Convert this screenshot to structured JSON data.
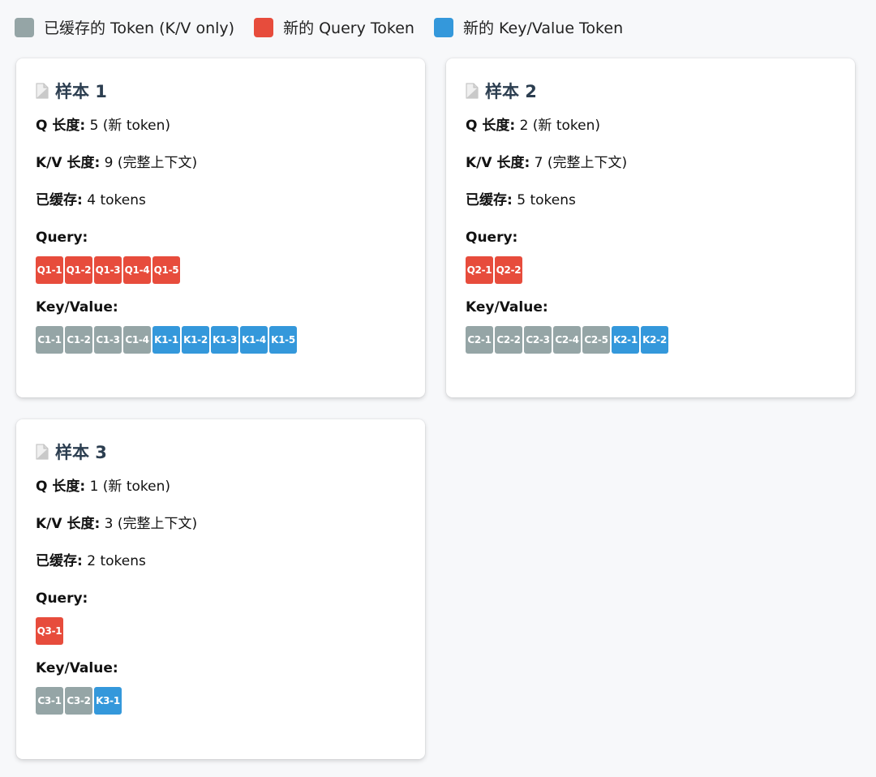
{
  "legend": [
    {
      "label": "已缓存的 Token (K/V only)",
      "color": "#95a5a6"
    },
    {
      "label": "新的 Query Token",
      "color": "#e74c3c"
    },
    {
      "label": "新的 Key/Value Token",
      "color": "#3498db"
    }
  ],
  "colors": {
    "cached": "#95a5a6",
    "query": "#e74c3c",
    "kv": "#3498db",
    "title": "#2c3e50"
  },
  "labels": {
    "q_len": "Q 长度:",
    "kv_len": "K/V 长度:",
    "cached": "已缓存:",
    "query": "Query:",
    "key_value": "Key/Value:"
  },
  "samples": [
    {
      "title": "样本 1",
      "q_len_value": "5 (新 token)",
      "kv_len_value": "9 (完整上下文)",
      "cached_value": "4 tokens",
      "query_tokens": [
        "Q1-1",
        "Q1-2",
        "Q1-3",
        "Q1-4",
        "Q1-5"
      ],
      "kv_tokens": [
        {
          "label": "C1-1",
          "type": "cached"
        },
        {
          "label": "C1-2",
          "type": "cached"
        },
        {
          "label": "C1-3",
          "type": "cached"
        },
        {
          "label": "C1-4",
          "type": "cached"
        },
        {
          "label": "K1-1",
          "type": "kv"
        },
        {
          "label": "K1-2",
          "type": "kv"
        },
        {
          "label": "K1-3",
          "type": "kv"
        },
        {
          "label": "K1-4",
          "type": "kv"
        },
        {
          "label": "K1-5",
          "type": "kv"
        }
      ]
    },
    {
      "title": "样本 2",
      "q_len_value": "2 (新 token)",
      "kv_len_value": "7 (完整上下文)",
      "cached_value": "5 tokens",
      "query_tokens": [
        "Q2-1",
        "Q2-2"
      ],
      "kv_tokens": [
        {
          "label": "C2-1",
          "type": "cached"
        },
        {
          "label": "C2-2",
          "type": "cached"
        },
        {
          "label": "C2-3",
          "type": "cached"
        },
        {
          "label": "C2-4",
          "type": "cached"
        },
        {
          "label": "C2-5",
          "type": "cached"
        },
        {
          "label": "K2-1",
          "type": "kv"
        },
        {
          "label": "K2-2",
          "type": "kv"
        }
      ]
    },
    {
      "title": "样本 3",
      "q_len_value": "1 (新 token)",
      "kv_len_value": "3 (完整上下文)",
      "cached_value": "2 tokens",
      "query_tokens": [
        "Q3-1"
      ],
      "kv_tokens": [
        {
          "label": "C3-1",
          "type": "cached"
        },
        {
          "label": "C3-2",
          "type": "cached"
        },
        {
          "label": "K3-1",
          "type": "kv"
        }
      ]
    }
  ]
}
